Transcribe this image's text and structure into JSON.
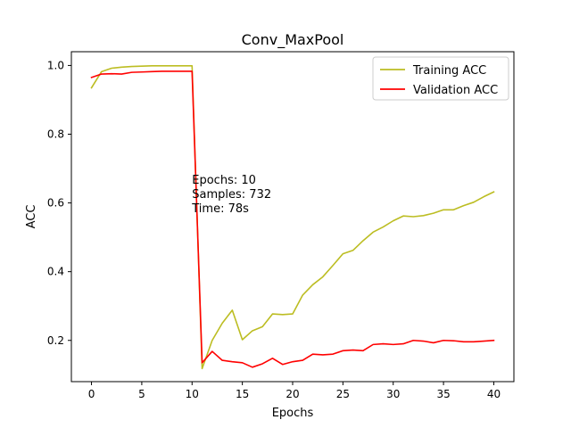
{
  "chart_data": {
    "type": "line",
    "title": "Conv_MaxPool",
    "xlabel": "Epochs",
    "ylabel": "ACC",
    "xlim": [
      -2,
      42
    ],
    "ylim": [
      0.08,
      1.04
    ],
    "xticks": [
      0,
      5,
      10,
      15,
      20,
      25,
      30,
      35,
      40
    ],
    "yticks": [
      0.2,
      0.4,
      0.6,
      0.8,
      1.0
    ],
    "ytick_labels": [
      "0.2",
      "0.4",
      "0.6",
      "0.8",
      "1.0"
    ],
    "grid": false,
    "legend_position": "top-right",
    "x": [
      0,
      1,
      2,
      3,
      4,
      5,
      6,
      7,
      8,
      9,
      10,
      11,
      12,
      13,
      14,
      15,
      16,
      17,
      18,
      19,
      20,
      21,
      22,
      23,
      24,
      25,
      26,
      27,
      28,
      29,
      30,
      31,
      32,
      33,
      34,
      35,
      36,
      37,
      38,
      39,
      40
    ],
    "series": [
      {
        "name": "Training ACC",
        "color": "#bcbd22",
        "values": [
          0.935,
          0.982,
          0.992,
          0.995,
          0.997,
          0.998,
          0.999,
          0.999,
          0.999,
          0.999,
          0.999,
          0.118,
          0.2,
          0.25,
          0.288,
          0.202,
          0.228,
          0.24,
          0.277,
          0.275,
          0.277,
          0.332,
          0.362,
          0.385,
          0.418,
          0.452,
          0.462,
          0.49,
          0.515,
          0.53,
          0.548,
          0.562,
          0.56,
          0.563,
          0.57,
          0.58,
          0.58,
          0.592,
          0.602,
          0.618,
          0.632
        ]
      },
      {
        "name": "Validation ACC",
        "color": "#ff0000",
        "values": [
          0.965,
          0.975,
          0.976,
          0.975,
          0.98,
          0.981,
          0.982,
          0.983,
          0.983,
          0.983,
          0.983,
          0.135,
          0.168,
          0.142,
          0.138,
          0.135,
          0.122,
          0.132,
          0.148,
          0.13,
          0.138,
          0.142,
          0.16,
          0.158,
          0.16,
          0.17,
          0.172,
          0.17,
          0.188,
          0.19,
          0.188,
          0.19,
          0.2,
          0.198,
          0.193,
          0.2,
          0.199,
          0.196,
          0.196,
          0.198,
          0.2
        ]
      }
    ],
    "annotation": {
      "x": 10,
      "y": 0.625,
      "lines": [
        "Epochs: 10",
        "Samples: 732",
        "Time: 78s"
      ]
    }
  }
}
